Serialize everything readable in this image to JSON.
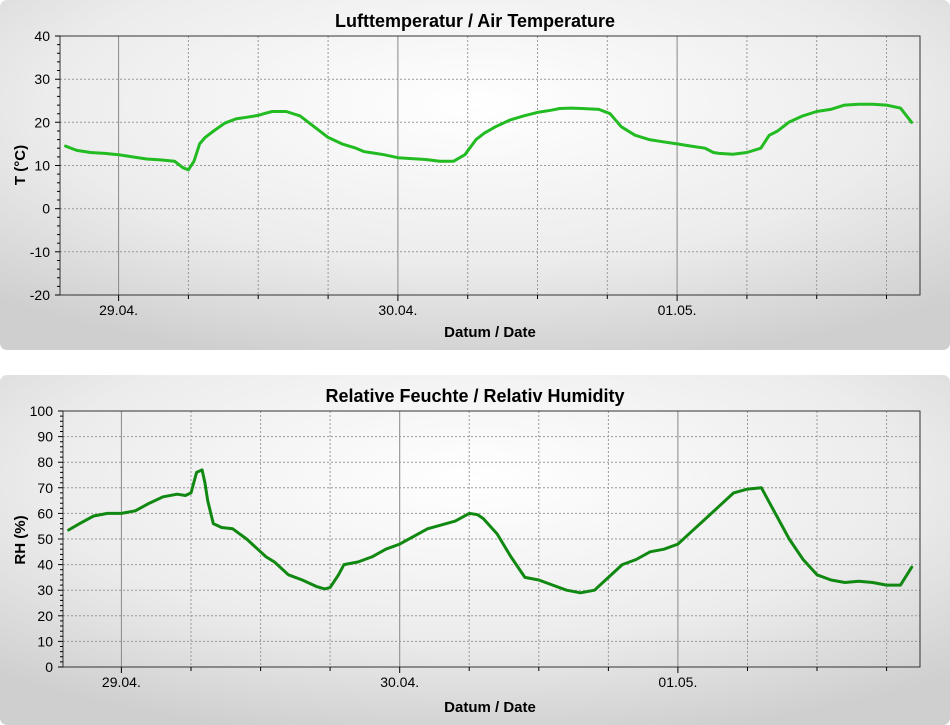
{
  "chart_data": [
    {
      "type": "line",
      "title": "Lufttemperatur / Air Temperature",
      "xlabel": "Datum / Date",
      "ylabel": "T (°C)",
      "ylim": [
        -20,
        40
      ],
      "yticks": [
        -20,
        -10,
        0,
        10,
        20,
        30,
        40
      ],
      "xlim": [
        -0.21,
        2.87
      ],
      "xticks": [
        {
          "x": 0,
          "label": "29.04."
        },
        {
          "x": 1,
          "label": "30.04."
        },
        {
          "x": 2,
          "label": "01.05."
        }
      ],
      "grid": true,
      "line_color": "#22bb22",
      "series": [
        {
          "x": [
            -0.19,
            -0.15,
            -0.1,
            -0.05,
            0,
            0.05,
            0.1,
            0.15,
            0.2,
            0.23,
            0.25,
            0.27,
            0.29,
            0.31,
            0.34,
            0.38,
            0.42,
            0.46,
            0.5,
            0.52,
            0.55,
            0.6,
            0.65,
            0.7,
            0.75,
            0.8,
            0.85,
            0.88,
            0.9,
            0.95,
            1,
            1.05,
            1.1,
            1.15,
            1.2,
            1.24,
            1.28,
            1.31,
            1.35,
            1.4,
            1.45,
            1.5,
            1.55,
            1.58,
            1.62,
            1.66,
            1.72,
            1.76,
            1.8,
            1.85,
            1.9,
            1.95,
            2,
            2.05,
            2.1,
            2.13,
            2.15,
            2.2,
            2.25,
            2.3,
            2.33,
            2.36,
            2.4,
            2.45,
            2.5,
            2.55,
            2.6,
            2.65,
            2.7,
            2.75,
            2.8,
            2.84
          ],
          "y": [
            14.5,
            13.5,
            13,
            12.8,
            12.5,
            12,
            11.5,
            11.3,
            11,
            9.5,
            9,
            11,
            15,
            16.5,
            18,
            19.8,
            20.8,
            21.2,
            21.6,
            22,
            22.5,
            22.5,
            21.5,
            19,
            16.5,
            15,
            14,
            13.2,
            13,
            12.5,
            11.8,
            11.6,
            11.4,
            11,
            11,
            12.5,
            16,
            17.5,
            19,
            20.5,
            21.5,
            22.3,
            22.8,
            23.2,
            23.3,
            23.2,
            23,
            22,
            19,
            17,
            16,
            15.5,
            15,
            14.5,
            14,
            13,
            12.8,
            12.6,
            13,
            14,
            17,
            18,
            20,
            21.5,
            22.5,
            23,
            24,
            24.2,
            24.2,
            24,
            23.3,
            20
          ]
        }
      ]
    },
    {
      "type": "line",
      "title": "Relative Feuchte / Relativ Humidity",
      "xlabel": "Datum / Date",
      "ylabel": "RH (%)",
      "ylim": [
        0,
        100
      ],
      "yticks": [
        0,
        10,
        20,
        30,
        40,
        50,
        60,
        70,
        80,
        90,
        100
      ],
      "xlim": [
        -0.21,
        2.87
      ],
      "xticks": [
        {
          "x": 0,
          "label": "29.04."
        },
        {
          "x": 1,
          "label": "30.04."
        },
        {
          "x": 2,
          "label": "01.05."
        }
      ],
      "grid": true,
      "line_color": "#118811",
      "series": [
        {
          "x": [
            -0.19,
            -0.15,
            -0.1,
            -0.05,
            0,
            0.05,
            0.1,
            0.15,
            0.2,
            0.23,
            0.25,
            0.27,
            0.29,
            0.3,
            0.31,
            0.33,
            0.36,
            0.4,
            0.45,
            0.5,
            0.52,
            0.55,
            0.6,
            0.65,
            0.7,
            0.73,
            0.75,
            0.78,
            0.8,
            0.85,
            0.9,
            0.95,
            1,
            1.05,
            1.1,
            1.15,
            1.2,
            1.25,
            1.28,
            1.3,
            1.35,
            1.4,
            1.45,
            1.5,
            1.55,
            1.6,
            1.65,
            1.7,
            1.75,
            1.8,
            1.85,
            1.9,
            1.95,
            2,
            2.05,
            2.1,
            2.15,
            2.2,
            2.25,
            2.3,
            2.35,
            2.4,
            2.45,
            2.5,
            2.55,
            2.6,
            2.65,
            2.7,
            2.75,
            2.8,
            2.84
          ],
          "y": [
            53.5,
            56,
            59,
            60,
            60,
            61,
            64,
            66.5,
            67.5,
            67,
            68,
            76,
            77,
            72,
            65,
            56,
            54.5,
            54,
            50,
            45,
            43,
            41,
            36,
            34,
            31.5,
            30.5,
            31,
            36,
            40,
            41,
            43,
            46,
            48,
            51,
            54,
            55.5,
            57,
            60,
            59.5,
            58,
            52,
            43,
            35,
            34,
            32,
            30,
            29,
            30,
            35,
            40,
            42,
            45,
            46,
            48,
            53,
            58,
            63,
            68,
            69.5,
            70,
            60,
            50,
            42,
            36,
            34,
            33,
            33.5,
            33,
            32,
            32,
            39
          ]
        }
      ]
    }
  ]
}
